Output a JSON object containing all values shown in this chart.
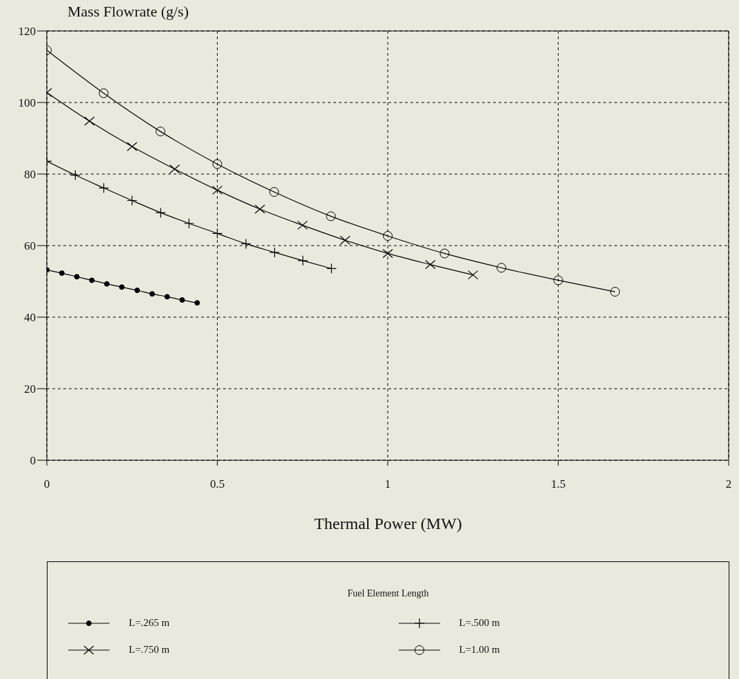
{
  "chart_data": {
    "type": "line",
    "ylabel": "Mass Flowrate (g/s)",
    "xlabel": "Thermal Power (MW)",
    "legend_title": "Fuel Element Length",
    "legend": "bottom",
    "grid": true,
    "line_style": "solid",
    "xlim": [
      0,
      2
    ],
    "xticks": [
      0,
      0.5,
      1,
      1.5,
      2
    ],
    "ylim": [
      0,
      120
    ],
    "yticks": [
      0,
      20,
      40,
      60,
      80,
      100,
      120
    ],
    "series": [
      {
        "name": "L=.265 m",
        "color": "#000000",
        "marker": "dot",
        "x": [
          0,
          0.044,
          0.088,
          0.132,
          0.176,
          0.22,
          0.265,
          0.309,
          0.353,
          0.397,
          0.441
        ],
        "values": [
          53.2,
          52.3,
          51.3,
          50.3,
          49.3,
          48.4,
          47.5,
          46.5,
          45.7,
          44.8,
          44.0
        ]
      },
      {
        "name": "L=.500 m",
        "color": "#000000",
        "marker": "plus",
        "x": [
          0,
          0.0835,
          0.167,
          0.25,
          0.334,
          0.417,
          0.5,
          0.584,
          0.668,
          0.751,
          0.835
        ],
        "values": [
          83.6,
          79.7,
          76.1,
          72.6,
          69.2,
          66.2,
          63.4,
          60.5,
          58.1,
          55.8,
          53.6
        ]
      },
      {
        "name": "L=.750 m",
        "color": "#000000",
        "marker": "cross",
        "x": [
          0,
          0.125,
          0.25,
          0.375,
          0.5,
          0.625,
          0.75,
          0.875,
          1.0,
          1.125,
          1.25
        ],
        "values": [
          102.8,
          94.8,
          87.7,
          81.4,
          75.5,
          70.2,
          65.7,
          61.5,
          57.8,
          54.7,
          51.8
        ]
      },
      {
        "name": "L=1.00 m",
        "color": "#000000",
        "marker": "circle",
        "x": [
          0,
          0.1667,
          0.3333,
          0.5,
          0.6667,
          0.8333,
          1.0,
          1.1667,
          1.3333,
          1.5,
          1.6667
        ],
        "values": [
          114.6,
          102.6,
          91.9,
          82.8,
          75.0,
          68.2,
          62.7,
          57.8,
          53.8,
          50.3,
          47.1
        ]
      }
    ]
  }
}
